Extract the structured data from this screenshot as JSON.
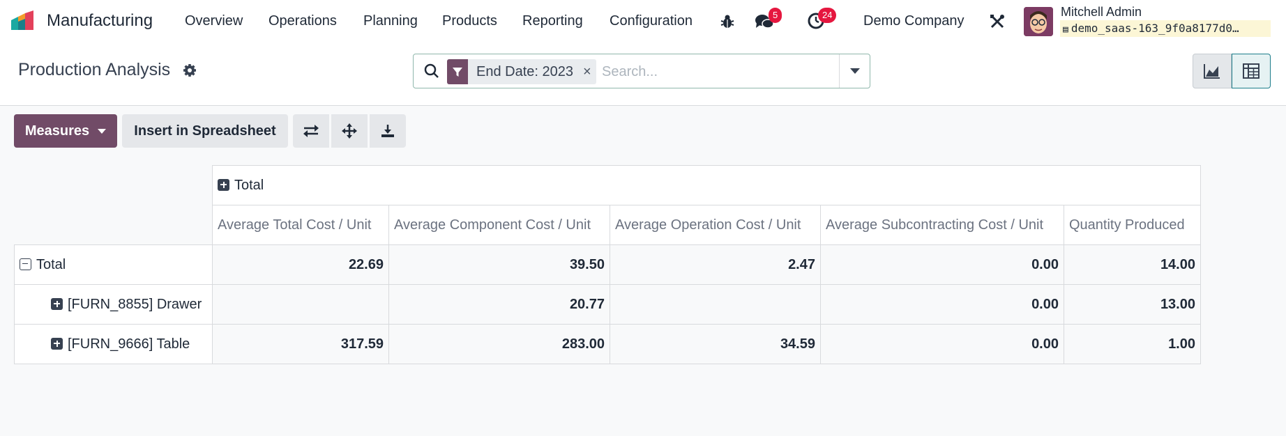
{
  "app": {
    "name": "Manufacturing"
  },
  "menu": [
    {
      "label": "Overview"
    },
    {
      "label": "Operations"
    },
    {
      "label": "Planning"
    },
    {
      "label": "Products"
    },
    {
      "label": "Reporting"
    },
    {
      "label": "Configuration"
    }
  ],
  "systray": {
    "messages_count": "5",
    "activities_count": "24",
    "company": "Demo Company",
    "user_name": "Mitchell Admin",
    "database": "demo_saas-163_9f0a8177d0…"
  },
  "page": {
    "title": "Production Analysis"
  },
  "search": {
    "facet_label": "End Date: 2023",
    "facet_close": "×",
    "placeholder": "Search..."
  },
  "toolbar": {
    "measures_label": "Measures",
    "insert_label": "Insert in Spreadsheet"
  },
  "pivot": {
    "column_group": "Total",
    "measures": [
      "Average Total Cost / Unit",
      "Average Component Cost / Unit",
      "Average Operation Cost / Unit",
      "Average Subcontracting Cost / Unit",
      "Quantity Produced"
    ],
    "rows": [
      {
        "label": "Total",
        "values": [
          "22.69",
          "39.50",
          "2.47",
          "0.00",
          "14.00"
        ]
      },
      {
        "label": "[FURN_8855] Drawer",
        "values": [
          "",
          "20.77",
          "",
          "0.00",
          "13.00"
        ]
      },
      {
        "label": "[FURN_9666] Table",
        "values": [
          "317.59",
          "283.00",
          "34.59",
          "0.00",
          "1.00"
        ]
      }
    ]
  },
  "colors": {
    "brand": "#714b67",
    "badge": "#e5173f",
    "accent": "#1c7d8a"
  },
  "icons": [
    "manufacturing-logo-icon",
    "bug-icon",
    "chat-icon",
    "clock-icon",
    "tools-icon",
    "database-icon",
    "gear-icon",
    "search-icon",
    "filter-icon",
    "caret-down-icon",
    "graph-view-icon",
    "pivot-view-icon",
    "flip-axis-icon",
    "expand-all-icon",
    "download-icon",
    "plus-square-icon",
    "minus-square-icon"
  ]
}
